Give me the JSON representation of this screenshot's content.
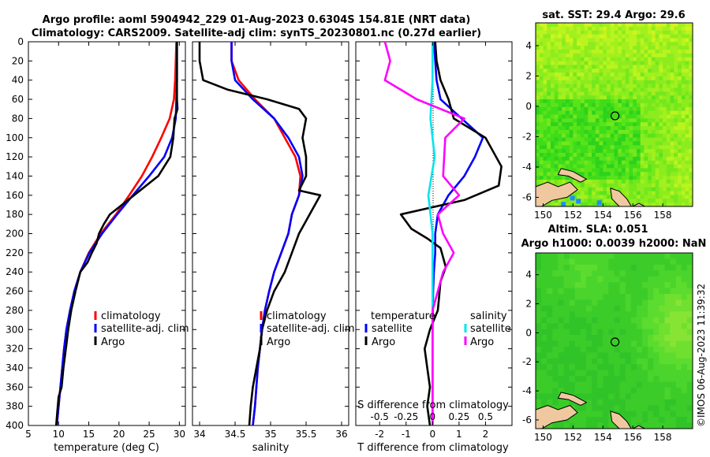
{
  "titles": {
    "line1": "Argo profile: aoml 5904942_229 01-Aug-2023 0.6304S 154.81E (NRT data)",
    "line2": "Climatology: CARS2009. Satellite-adj clim: synTS_20230801.nc (0.27d earlier)"
  },
  "depth_ticks": [
    "0",
    "20",
    "40",
    "60",
    "80",
    "100",
    "120",
    "140",
    "160",
    "180",
    "200",
    "220",
    "240",
    "260",
    "280",
    "300",
    "320",
    "340",
    "360",
    "380",
    "400"
  ],
  "colors": {
    "climatology": "#ff0000",
    "satellite": "#0000ff",
    "argo": "#000000",
    "sal_sat": "#00e5ee",
    "sal_argo": "#ff00ff"
  },
  "chart_data": [
    {
      "type": "line",
      "title": "",
      "xlabel": "temperature (deg C)",
      "ylabel": "",
      "xlim": [
        5,
        31
      ],
      "ylim": [
        400,
        0
      ],
      "xticks": [
        "5",
        "10",
        "15",
        "20",
        "25",
        "30"
      ],
      "legend": [
        "climatology",
        "satellite-adj. clim",
        "Argo"
      ],
      "series": [
        {
          "name": "climatology",
          "key": "climatology",
          "points": [
            [
              29.5,
              0
            ],
            [
              29.4,
              20
            ],
            [
              29.3,
              40
            ],
            [
              29.1,
              60
            ],
            [
              28.4,
              80
            ],
            [
              27.0,
              100
            ],
            [
              25.5,
              120
            ],
            [
              23.8,
              140
            ],
            [
              21.7,
              160
            ],
            [
              19.5,
              180
            ],
            [
              17.0,
              200
            ],
            [
              15.0,
              220
            ],
            [
              13.6,
              240
            ],
            [
              12.6,
              260
            ],
            [
              11.9,
              280
            ],
            [
              11.3,
              300
            ],
            [
              10.9,
              320
            ],
            [
              10.6,
              340
            ],
            [
              10.3,
              360
            ],
            [
              10.0,
              380
            ],
            [
              9.7,
              400
            ]
          ]
        },
        {
          "name": "satellite-adj. clim",
          "key": "satellite",
          "points": [
            [
              29.6,
              0
            ],
            [
              29.6,
              20
            ],
            [
              29.6,
              40
            ],
            [
              29.5,
              60
            ],
            [
              29.4,
              80
            ],
            [
              28.8,
              100
            ],
            [
              27.5,
              120
            ],
            [
              25.0,
              140
            ],
            [
              22.3,
              160
            ],
            [
              19.7,
              180
            ],
            [
              17.2,
              200
            ],
            [
              15.1,
              220
            ],
            [
              13.6,
              240
            ],
            [
              12.6,
              260
            ],
            [
              11.9,
              280
            ],
            [
              11.3,
              300
            ],
            [
              10.9,
              320
            ],
            [
              10.6,
              340
            ],
            [
              10.3,
              360
            ],
            [
              10.0,
              380
            ],
            [
              9.7,
              400
            ]
          ]
        },
        {
          "name": "Argo",
          "key": "argo",
          "points": [
            [
              29.6,
              0
            ],
            [
              29.6,
              20
            ],
            [
              29.6,
              40
            ],
            [
              29.6,
              60
            ],
            [
              29.7,
              70
            ],
            [
              29.2,
              80
            ],
            [
              29.0,
              100
            ],
            [
              28.5,
              120
            ],
            [
              26.5,
              140
            ],
            [
              23.5,
              155
            ],
            [
              20.5,
              170
            ],
            [
              18.5,
              180
            ],
            [
              17.5,
              190
            ],
            [
              16.7,
              200
            ],
            [
              16.3,
              210
            ],
            [
              15.5,
              220
            ],
            [
              14.8,
              230
            ],
            [
              13.6,
              240
            ],
            [
              12.8,
              260
            ],
            [
              12.1,
              280
            ],
            [
              11.6,
              300
            ],
            [
              11.2,
              320
            ],
            [
              10.8,
              340
            ],
            [
              10.5,
              360
            ],
            [
              10.0,
              370
            ],
            [
              9.8,
              385
            ],
            [
              9.6,
              400
            ]
          ]
        }
      ]
    },
    {
      "type": "line",
      "title": "",
      "xlabel": "salinity",
      "ylabel": "",
      "xlim": [
        33.9,
        36.1
      ],
      "ylim": [
        400,
        0
      ],
      "xticks": [
        "34",
        "34.5",
        "35",
        "35.5",
        "36"
      ],
      "legend": [
        "climatology",
        "satellite-adj. clim",
        "Argo"
      ],
      "series": [
        {
          "name": "climatology",
          "key": "climatology",
          "points": [
            [
              34.45,
              0
            ],
            [
              34.45,
              20
            ],
            [
              34.55,
              40
            ],
            [
              34.78,
              60
            ],
            [
              35.05,
              80
            ],
            [
              35.2,
              100
            ],
            [
              35.35,
              120
            ],
            [
              35.42,
              140
            ],
            [
              35.4,
              160
            ],
            [
              35.3,
              180
            ],
            [
              35.25,
              200
            ],
            [
              35.15,
              220
            ],
            [
              35.05,
              240
            ],
            [
              34.98,
              260
            ],
            [
              34.92,
              280
            ],
            [
              34.88,
              300
            ],
            [
              34.85,
              320
            ],
            [
              34.82,
              340
            ],
            [
              34.8,
              360
            ],
            [
              34.78,
              380
            ],
            [
              34.75,
              400
            ]
          ]
        },
        {
          "name": "satellite-adj. clim",
          "key": "satellite",
          "points": [
            [
              34.45,
              0
            ],
            [
              34.45,
              20
            ],
            [
              34.5,
              40
            ],
            [
              34.75,
              60
            ],
            [
              35.05,
              80
            ],
            [
              35.25,
              100
            ],
            [
              35.4,
              120
            ],
            [
              35.45,
              140
            ],
            [
              35.4,
              160
            ],
            [
              35.3,
              180
            ],
            [
              35.25,
              200
            ],
            [
              35.15,
              220
            ],
            [
              35.05,
              240
            ],
            [
              34.98,
              260
            ],
            [
              34.92,
              280
            ],
            [
              34.88,
              300
            ],
            [
              34.85,
              320
            ],
            [
              34.82,
              340
            ],
            [
              34.8,
              360
            ],
            [
              34.78,
              380
            ],
            [
              34.75,
              400
            ]
          ]
        },
        {
          "name": "Argo",
          "key": "argo",
          "points": [
            [
              34.0,
              0
            ],
            [
              34.0,
              20
            ],
            [
              34.05,
              40
            ],
            [
              34.4,
              50
            ],
            [
              34.95,
              60
            ],
            [
              35.4,
              70
            ],
            [
              35.5,
              80
            ],
            [
              35.45,
              100
            ],
            [
              35.5,
              120
            ],
            [
              35.5,
              140
            ],
            [
              35.4,
              155
            ],
            [
              35.7,
              160
            ],
            [
              35.55,
              180
            ],
            [
              35.4,
              200
            ],
            [
              35.3,
              220
            ],
            [
              35.2,
              240
            ],
            [
              35.05,
              260
            ],
            [
              34.95,
              280
            ],
            [
              34.88,
              300
            ],
            [
              34.85,
              320
            ],
            [
              34.8,
              340
            ],
            [
              34.75,
              360
            ],
            [
              34.72,
              380
            ],
            [
              34.7,
              400
            ]
          ]
        }
      ]
    },
    {
      "type": "line",
      "title": "",
      "xlabel": "T difference from climatology",
      "x2label": "S difference from climatology",
      "ylabel": "",
      "xlim": [
        -2.9,
        3.0
      ],
      "x2lim": [
        -0.725,
        0.75
      ],
      "ylim": [
        400,
        0
      ],
      "xticks": [
        "-2",
        "-1",
        "0",
        "1",
        "2"
      ],
      "x2ticks": [
        "-0.5",
        "-0.25",
        "0",
        "0.25",
        "0.5"
      ],
      "legend_groups": [
        "temperature",
        "salinity"
      ],
      "legend": [
        "satellite",
        "Argo",
        "satellite",
        "Argo"
      ],
      "series": [
        {
          "name": "temperature satellite",
          "key": "satellite",
          "axis": "T",
          "points": [
            [
              0.05,
              0
            ],
            [
              0.1,
              20
            ],
            [
              0.15,
              40
            ],
            [
              0.3,
              60
            ],
            [
              1.1,
              80
            ],
            [
              1.9,
              100
            ],
            [
              1.6,
              120
            ],
            [
              1.2,
              140
            ],
            [
              0.6,
              160
            ],
            [
              0.2,
              180
            ],
            [
              0.1,
              200
            ],
            [
              0.1,
              220
            ],
            [
              0.05,
              240
            ],
            [
              0.02,
              260
            ],
            [
              0.0,
              300
            ],
            [
              0.0,
              340
            ],
            [
              0.0,
              380
            ],
            [
              0.0,
              400
            ]
          ]
        },
        {
          "name": "temperature Argo",
          "key": "argo",
          "axis": "T",
          "points": [
            [
              0.1,
              0
            ],
            [
              0.15,
              20
            ],
            [
              0.3,
              40
            ],
            [
              0.6,
              60
            ],
            [
              0.8,
              80
            ],
            [
              2.0,
              100
            ],
            [
              2.6,
              130
            ],
            [
              2.5,
              150
            ],
            [
              1.2,
              165
            ],
            [
              -1.2,
              180
            ],
            [
              -0.8,
              195
            ],
            [
              -0.2,
              205
            ],
            [
              0.3,
              215
            ],
            [
              0.5,
              235
            ],
            [
              0.3,
              250
            ],
            [
              0.2,
              280
            ],
            [
              -0.1,
              300
            ],
            [
              -0.3,
              320
            ],
            [
              -0.2,
              340
            ],
            [
              -0.1,
              360
            ],
            [
              -0.2,
              380
            ],
            [
              -0.1,
              400
            ]
          ]
        },
        {
          "name": "salinity satellite",
          "key": "sal_sat",
          "axis": "S",
          "points": [
            [
              0.0,
              0
            ],
            [
              0.0,
              40
            ],
            [
              -0.02,
              80
            ],
            [
              0.02,
              120
            ],
            [
              -0.04,
              160
            ],
            [
              0.0,
              200
            ],
            [
              0.0,
              240
            ],
            [
              0.0,
              300
            ],
            [
              0.0,
              360
            ],
            [
              0.0,
              400
            ]
          ]
        },
        {
          "name": "salinity Argo",
          "key": "sal_argo",
          "axis": "S",
          "points": [
            [
              -0.45,
              0
            ],
            [
              -0.4,
              20
            ],
            [
              -0.45,
              40
            ],
            [
              -0.15,
              60
            ],
            [
              0.3,
              80
            ],
            [
              0.12,
              100
            ],
            [
              0.1,
              140
            ],
            [
              0.25,
              160
            ],
            [
              0.05,
              180
            ],
            [
              0.1,
              200
            ],
            [
              0.2,
              220
            ],
            [
              0.1,
              240
            ],
            [
              0.05,
              260
            ],
            [
              0.0,
              280
            ],
            [
              0.0,
              300
            ],
            [
              0.0,
              340
            ],
            [
              0.0,
              380
            ],
            [
              0.0,
              400
            ]
          ]
        }
      ]
    },
    {
      "type": "heatmap",
      "title": "sat. SST: 29.4 Argo: 29.6",
      "xlim": [
        149.5,
        160.0
      ],
      "ylim": [
        -6.6,
        5.5
      ],
      "xticks": [
        "150",
        "152",
        "154",
        "156",
        "158"
      ],
      "yticks": [
        "4",
        "2",
        "0",
        "-2",
        "-4",
        "-6"
      ],
      "marker": {
        "lon": 154.81,
        "lat": -0.63
      }
    },
    {
      "type": "heatmap",
      "title": "Altim. SLA: 0.051",
      "subtitle": "Argo h1000: 0.0039 h2000: NaN",
      "xlim": [
        149.5,
        160.0
      ],
      "ylim": [
        -6.6,
        5.5
      ],
      "xticks": [
        "150",
        "152",
        "154",
        "156",
        "158"
      ],
      "yticks": [
        "4",
        "2",
        "0",
        "-2",
        "-4",
        "-6"
      ],
      "marker": {
        "lon": 154.81,
        "lat": -0.63
      }
    }
  ],
  "watermark": "©IMOS 06-Aug-2023 11:39:32"
}
